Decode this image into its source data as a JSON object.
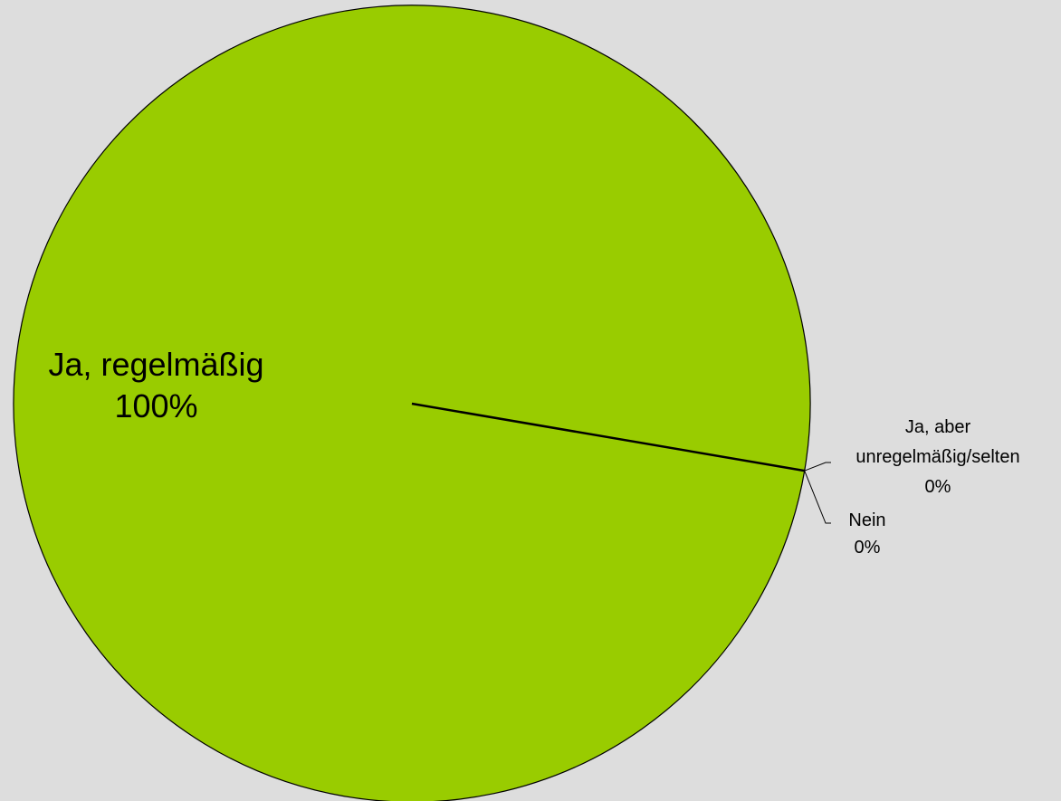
{
  "chart_data": {
    "type": "pie",
    "categories": [
      "Ja, regelmäßig",
      "Ja, aber unregelmäßig/selten",
      "Nein"
    ],
    "values": [
      100,
      0,
      0
    ],
    "value_labels": [
      "100%",
      "0%",
      "0%"
    ],
    "colors": [
      "#99cc00",
      "#99cc00",
      "#99cc00"
    ]
  }
}
